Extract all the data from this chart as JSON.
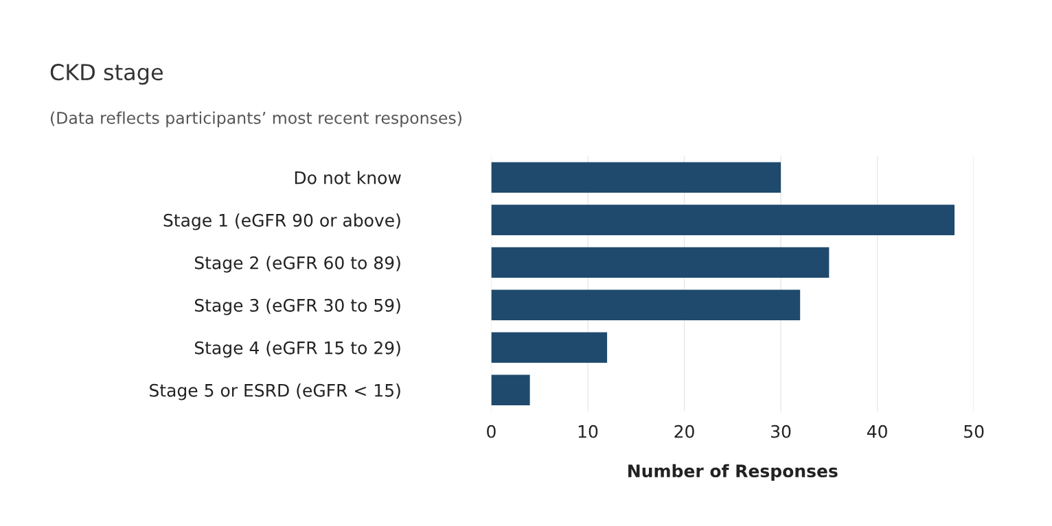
{
  "chart_data": {
    "type": "bar",
    "orientation": "horizontal",
    "title": "CKD stage",
    "subtitle": "(Data reflects participants’ most recent responses)",
    "xlabel": "Number of Responses",
    "categories": [
      "Do not know",
      "Stage 1 (eGFR 90 or above)",
      "Stage 2 (eGFR 60 to 89)",
      "Stage 3 (eGFR 30 to 59)",
      "Stage 4 (eGFR 15 to 29)",
      "Stage 5 or ESRD (eGFR < 15)"
    ],
    "values": [
      30,
      48,
      35,
      32,
      12,
      4
    ],
    "color": "#1f4a6e",
    "xlim": [
      0,
      50
    ],
    "xticks": [
      0,
      10,
      20,
      30,
      40,
      50
    ],
    "grid": "x",
    "legend": false
  }
}
